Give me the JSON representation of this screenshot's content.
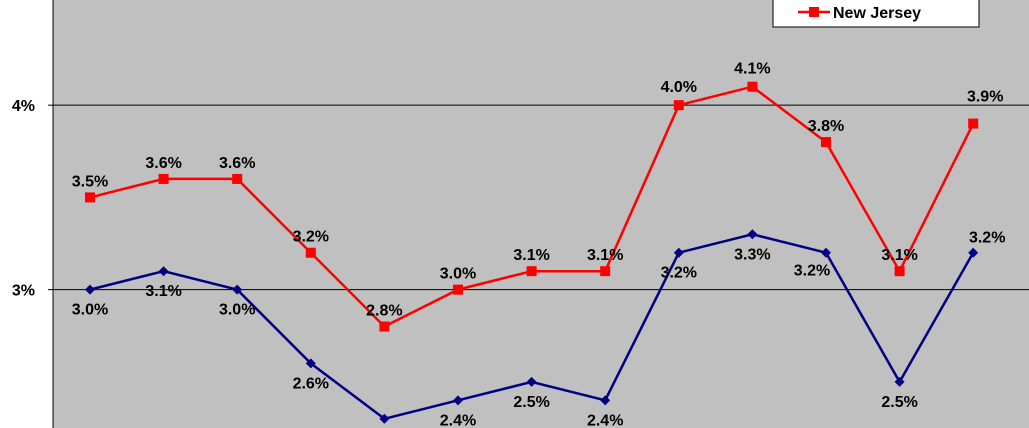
{
  "chart_data": {
    "type": "line",
    "x": [
      "1",
      "2",
      "3",
      "4",
      "5",
      "6",
      "7",
      "8",
      "9",
      "10",
      "11",
      "12",
      "13"
    ],
    "ylim": [
      2.25,
      4.57
    ],
    "y_ticks": [
      {
        "value": 3,
        "label": "3%"
      },
      {
        "value": 4,
        "label": "4%"
      }
    ],
    "grid": true,
    "legend_position": "top-right",
    "series": [
      {
        "name": "New Jersey",
        "color": "#ff0000",
        "marker": "square",
        "values": [
          3.5,
          3.6,
          3.6,
          3.2,
          2.8,
          3.0,
          3.1,
          3.1,
          4.0,
          4.1,
          3.8,
          3.1,
          3.9
        ],
        "labels": [
          "3.5%",
          "3.6%",
          "3.6%",
          "3.2%",
          "2.8%",
          "3.0%",
          "3.1%",
          "3.1%",
          "4.0%",
          "4.1%",
          "3.8%",
          "3.1%",
          "3.9%"
        ]
      },
      {
        "name": "",
        "color": "#000080",
        "marker": "diamond",
        "values": [
          3.0,
          3.1,
          3.0,
          2.6,
          2.3,
          2.4,
          2.5,
          2.4,
          3.2,
          3.3,
          3.2,
          2.5,
          3.2
        ],
        "labels": [
          "3.0%",
          "3.1%",
          "3.0%",
          "2.6%",
          "",
          "2.4%",
          "2.5%",
          "2.4%",
          "3.2%",
          "3.3%",
          "3.2%",
          "2.5%",
          "3.2%"
        ]
      }
    ]
  }
}
